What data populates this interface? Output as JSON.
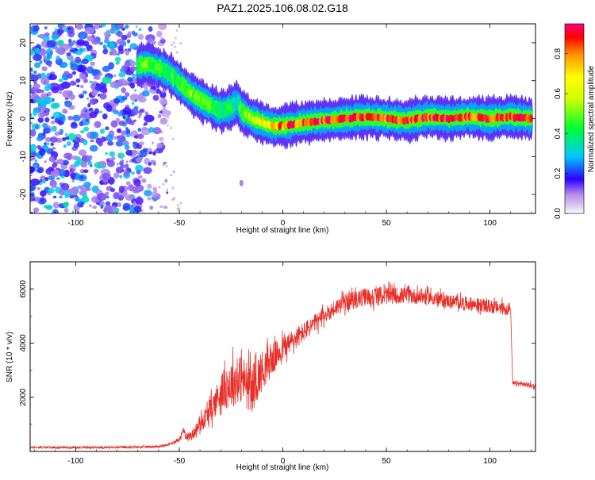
{
  "figure": {
    "title": "PAZ1.2025.106.08.02.G18"
  },
  "chart_data": [
    {
      "type": "heatmap",
      "title": "PAZ1.2025.106.08.02.G18",
      "xlabel": "Height of straight line (km)",
      "ylabel": "Frequency (Hz)",
      "xlim": [
        -122,
        122
      ],
      "ylim": [
        -25,
        25
      ],
      "xticks": [
        -100,
        -50,
        0,
        50,
        100
      ],
      "yticks": [
        -20,
        -10,
        0,
        10,
        20
      ],
      "colorbar": {
        "label": "Normalized spectral amplitude",
        "range": [
          0,
          0.95
        ],
        "ticks": [
          0.0,
          0.2,
          0.4,
          0.6,
          0.8
        ]
      },
      "ridge": {
        "x": [
          -70,
          -65,
          -60,
          -55,
          -50,
          -45,
          -40,
          -35,
          -30,
          -25,
          -22,
          -20,
          -15,
          -10,
          -5,
          0,
          10,
          20,
          30,
          40,
          50,
          60,
          70,
          80,
          90,
          100,
          110,
          120
        ],
        "y": [
          14,
          14.5,
          13.5,
          12,
          9.5,
          7,
          5,
          3.5,
          2,
          3,
          4.5,
          2,
          0,
          -1,
          -2,
          -2,
          -1,
          -0.5,
          0,
          0.5,
          0,
          -0.5,
          0.5,
          0,
          0.5,
          0,
          0.5,
          0
        ],
        "peak_amplitude": [
          0.45,
          0.5,
          0.45,
          0.4,
          0.45,
          0.5,
          0.5,
          0.45,
          0.4,
          0.4,
          0.3,
          0.5,
          0.6,
          0.65,
          0.7,
          0.8,
          0.85,
          0.85,
          0.9,
          0.9,
          0.85,
          0.9,
          0.85,
          0.9,
          0.85,
          0.9,
          0.85,
          0.85
        ]
      },
      "noise_region_x": [
        -122,
        -55
      ],
      "noise_amplitude": [
        0.1,
        0.35
      ]
    },
    {
      "type": "line",
      "xlabel": "Height of straight line (km)",
      "ylabel": "SNR (10 * v/v)",
      "xlim": [
        -122,
        122
      ],
      "ylim": [
        0,
        7000
      ],
      "xticks": [
        -100,
        -50,
        0,
        50,
        100
      ],
      "yticks": [
        2000,
        4000,
        6000
      ],
      "color": "#e8302a",
      "envelope": {
        "x": [
          -122,
          -80,
          -60,
          -55,
          -50,
          -48,
          -46,
          -44,
          -40,
          -35,
          -30,
          -25,
          -20,
          -15,
          -10,
          -5,
          0,
          10,
          20,
          25,
          30,
          35,
          40,
          50,
          60,
          70,
          80,
          90,
          100,
          105,
          110,
          111,
          115,
          122
        ],
        "y": [
          150,
          150,
          180,
          250,
          450,
          750,
          550,
          600,
          1000,
          1500,
          2200,
          2500,
          2700,
          2300,
          3000,
          3400,
          3800,
          4400,
          5000,
          5300,
          5500,
          5600,
          5700,
          5750,
          5750,
          5700,
          5550,
          5450,
          5350,
          5300,
          5250,
          2500,
          2500,
          2400
        ]
      },
      "noise_amplitude": {
        "x": [
          -122,
          -55,
          -45,
          -35,
          -25,
          -15,
          0,
          20,
          40,
          60,
          80,
          110,
          111,
          122
        ],
        "y": [
          40,
          40,
          150,
          450,
          900,
          900,
          450,
          300,
          350,
          300,
          250,
          250,
          100,
          100
        ]
      }
    }
  ]
}
